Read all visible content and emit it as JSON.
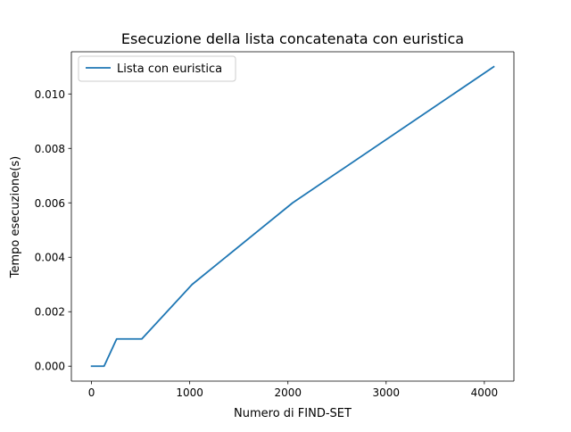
{
  "chart_data": {
    "type": "line",
    "title": "Esecuzione della lista concatenata con euristica",
    "xlabel": "Numero di FIND-SET",
    "ylabel": "Tempo esecuzione(s)",
    "xlim": [
      -205,
      4301
    ],
    "ylim": [
      -0.00055,
      0.01155
    ],
    "xticks": [
      0,
      1000,
      2000,
      3000,
      4000
    ],
    "xtick_labels": [
      "0",
      "1000",
      "2000",
      "3000",
      "4000"
    ],
    "yticks": [
      0.0,
      0.002,
      0.004,
      0.006,
      0.008,
      0.01
    ],
    "ytick_labels": [
      "0.000",
      "0.002",
      "0.004",
      "0.006",
      "0.008",
      "0.010"
    ],
    "grid": false,
    "legend_position": "upper-left",
    "series": [
      {
        "name": "Lista con euristica",
        "color": "#1f77b4",
        "x": [
          1,
          2,
          4,
          8,
          16,
          32,
          64,
          128,
          256,
          512,
          1024,
          2048,
          4096
        ],
        "y": [
          0.0,
          0.0,
          0.0,
          0.0,
          0.0,
          0.0,
          0.0,
          0.0,
          0.001,
          0.001,
          0.003,
          0.006,
          0.011
        ]
      }
    ]
  }
}
